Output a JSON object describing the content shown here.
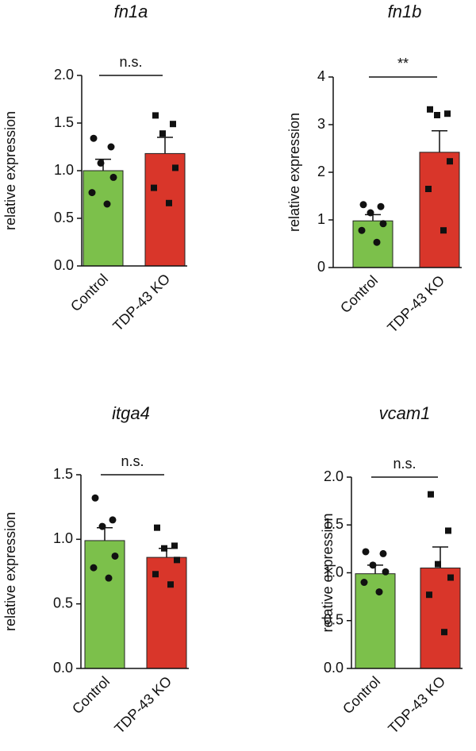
{
  "chart_data": [
    {
      "type": "bar",
      "title": "fn1a",
      "ylabel": "relative expression",
      "categories": [
        "Control",
        "TDP-43 KO"
      ],
      "values": [
        1.0,
        1.18
      ],
      "errors": [
        0.12,
        0.17
      ],
      "points": [
        [
          1.34,
          1.25,
          1.08,
          0.93,
          0.77,
          0.65
        ],
        [
          1.58,
          1.49,
          1.39,
          1.03,
          0.82,
          0.66
        ]
      ],
      "markers": [
        "circle",
        "square"
      ],
      "colors": [
        "#7cc04b",
        "#d9362a"
      ],
      "annotation": "n.s.",
      "ylim": [
        0,
        2
      ],
      "yticks": [
        {
          "value": 0,
          "label": "0.0"
        },
        0.5,
        {
          "value": 1,
          "label": "1.0"
        },
        1.5,
        {
          "value": 2,
          "label": "2.0"
        }
      ]
    },
    {
      "type": "bar",
      "title": "fn1b",
      "ylabel": "relative expression",
      "categories": [
        "Control",
        "TDP-43 KO"
      ],
      "values": [
        0.98,
        2.42
      ],
      "errors": [
        0.13,
        0.45
      ],
      "points": [
        [
          1.32,
          1.28,
          1.15,
          0.92,
          0.78,
          0.53
        ],
        [
          3.32,
          3.23,
          3.2,
          2.23,
          1.65,
          0.78
        ]
      ],
      "markers": [
        "circle",
        "square"
      ],
      "colors": [
        "#7cc04b",
        "#d9362a"
      ],
      "annotation": "**",
      "ylim": [
        0,
        4
      ],
      "yticks": [
        0,
        1,
        2,
        3,
        4
      ]
    },
    {
      "type": "bar",
      "title": "itga4",
      "ylabel": "relative expression",
      "categories": [
        "Control",
        "TDP-43 KO"
      ],
      "values": [
        0.99,
        0.86
      ],
      "errors": [
        0.1,
        0.07
      ],
      "points": [
        [
          1.32,
          1.15,
          1.1,
          0.87,
          0.78,
          0.7
        ],
        [
          1.09,
          0.95,
          0.93,
          0.84,
          0.73,
          0.65
        ]
      ],
      "markers": [
        "circle",
        "square"
      ],
      "colors": [
        "#7cc04b",
        "#d9362a"
      ],
      "annotation": "n.s.",
      "ylim": [
        0,
        1.5
      ],
      "yticks": [
        {
          "value": 0,
          "label": "0.0"
        },
        0.5,
        {
          "value": 1,
          "label": "1.0"
        },
        1.5
      ]
    },
    {
      "type": "bar",
      "title": "vcam1",
      "ylabel": "relative expression",
      "categories": [
        "Control",
        "TDP-43 KO"
      ],
      "values": [
        0.99,
        1.05
      ],
      "errors": [
        0.09,
        0.22
      ],
      "points": [
        [
          1.22,
          1.2,
          1.08,
          1.01,
          0.9,
          0.8
        ],
        [
          1.82,
          1.44,
          1.09,
          0.95,
          0.77,
          0.38
        ]
      ],
      "markers": [
        "circle",
        "square"
      ],
      "colors": [
        "#7cc04b",
        "#d9362a"
      ],
      "annotation": "n.s.",
      "ylim": [
        0,
        2
      ],
      "yticks": [
        {
          "value": 0,
          "label": "0.0"
        },
        0.5,
        {
          "value": 1,
          "label": "1.0"
        },
        1.5,
        {
          "value": 2,
          "label": "2.0"
        }
      ]
    }
  ]
}
